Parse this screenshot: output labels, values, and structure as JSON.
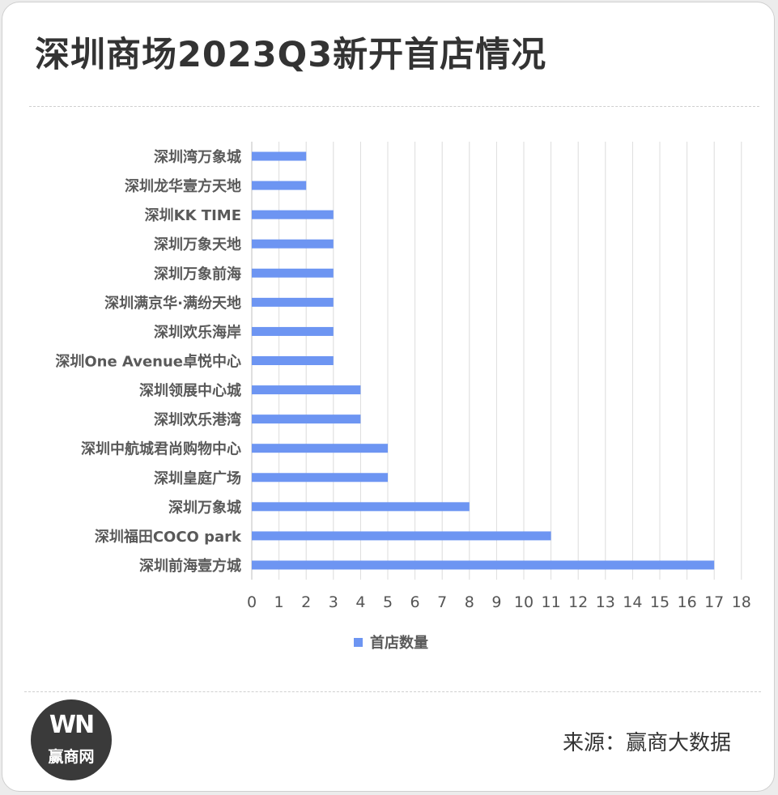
{
  "header": {
    "title": "深圳商场2023Q3新开首店情况"
  },
  "footer": {
    "source": "来源：赢商大数据",
    "logo_mark": "WN",
    "logo_text": "赢商网"
  },
  "chart_data": {
    "type": "bar",
    "orientation": "horizontal",
    "title": "",
    "xlabel": "",
    "ylabel": "",
    "categories": [
      "深圳湾万象城",
      "深圳龙华壹方天地",
      "深圳KK TIME",
      "深圳万象天地",
      "深圳万象前海",
      "深圳满京华·满纷天地",
      "深圳欢乐海岸",
      "深圳One Avenue卓悦中心",
      "深圳领展中心城",
      "深圳欢乐港湾",
      "深圳中航城君尚购物中心",
      "深圳皇庭广场",
      "深圳万象城",
      "深圳福田COCO park",
      "深圳前海壹方城"
    ],
    "series": [
      {
        "name": "首店数量",
        "values": [
          2,
          2,
          3,
          3,
          3,
          3,
          3,
          3,
          4,
          4,
          5,
          5,
          8,
          11,
          17
        ],
        "color": "#6d95f2"
      }
    ],
    "xlim": [
      0,
      18
    ],
    "xticks": [
      "0",
      "1",
      "2",
      "3",
      "4",
      "5",
      "6",
      "7",
      "8",
      "9",
      "10",
      "11",
      "12",
      "13",
      "14",
      "15",
      "16",
      "17",
      "18"
    ],
    "grid": "vertical",
    "legend_position": "bottom"
  }
}
